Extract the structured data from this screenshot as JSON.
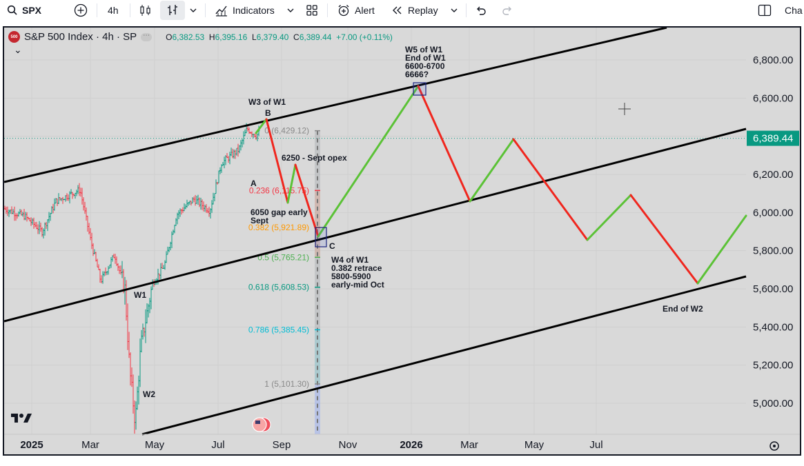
{
  "toolbar": {
    "symbol": "SPX",
    "interval": "4h",
    "indicators_label": "Indicators",
    "alert_label": "Alert",
    "replay_label": "Replay",
    "right_label": "Cha"
  },
  "legend": {
    "badge": "500",
    "title": "S&P 500 Index · 4h · SP",
    "o_label": "O",
    "o_value": "6,382.53",
    "h_label": "H",
    "h_value": "6,395.16",
    "l_label": "L",
    "l_value": "6,379.40",
    "c_label": "C",
    "c_value": "6,389.44",
    "change": "+7.00 (+0.11%)",
    "collapse": "⌄"
  },
  "price_axis": {
    "ticks": [
      "6,800.00",
      "6,600.00",
      "6,400.00",
      "6,200.00",
      "6,000.00",
      "5,800.00",
      "5,600.00",
      "5,400.00",
      "5,200.00",
      "5,000.00"
    ],
    "last_price": "6,389.44"
  },
  "time_axis": {
    "labels": [
      {
        "text": "2025",
        "bold": true
      },
      {
        "text": "Mar",
        "bold": false
      },
      {
        "text": "May",
        "bold": false
      },
      {
        "text": "Jul",
        "bold": false
      },
      {
        "text": "Sep",
        "bold": false
      },
      {
        "text": "Nov",
        "bold": false
      },
      {
        "text": "2026",
        "bold": true
      },
      {
        "text": "Mar",
        "bold": false
      },
      {
        "text": "May",
        "bold": false
      },
      {
        "text": "Jul",
        "bold": false
      }
    ]
  },
  "fib_levels": [
    {
      "ratio": "0",
      "label": "0 (6,429.12)",
      "color": "#888888"
    },
    {
      "ratio": "0.236",
      "label": "0.236 (6,115.75)",
      "color": "#f23645"
    },
    {
      "ratio": "0.382",
      "label": "0.382 (5,921.89)",
      "color": "#ff9800"
    },
    {
      "ratio": "0.5",
      "label": "0.5 (5,765.21)",
      "color": "#4caf50"
    },
    {
      "ratio": "0.618",
      "label": "0.618 (5,608.53)",
      "color": "#089981"
    },
    {
      "ratio": "0.786",
      "label": "0.786 (5,385.45)",
      "color": "#00bcd4"
    },
    {
      "ratio": "1",
      "label": "1 (5,101.30)",
      "color": "#888888"
    }
  ],
  "annotations": {
    "w1": "W1",
    "w2": "W2",
    "a": "A",
    "b": "B",
    "c": "C",
    "w3": "W3 of W1",
    "sept_opex": "6250 - Sept opex",
    "gap_line1": "6050 gap early",
    "gap_line2": "Sept",
    "w4_line1": "W4 of W1",
    "w4_line2": "0.382 retrace",
    "w4_line3": "5800-5900",
    "w4_line4": "early-mid Oct",
    "w5_line1": "W5 of W1",
    "w5_line2": "End of W1",
    "w5_line3": "6600-6700",
    "w5_line4": "6666?",
    "end_w2": "End of W2"
  },
  "colors": {
    "up": "#5bc236",
    "down": "#f0261e",
    "candle_up": "#089981",
    "candle_down": "#f23645",
    "channel": "#000000",
    "last_price_bg": "#089981",
    "pane_bg": "#d9d9d9"
  }
}
